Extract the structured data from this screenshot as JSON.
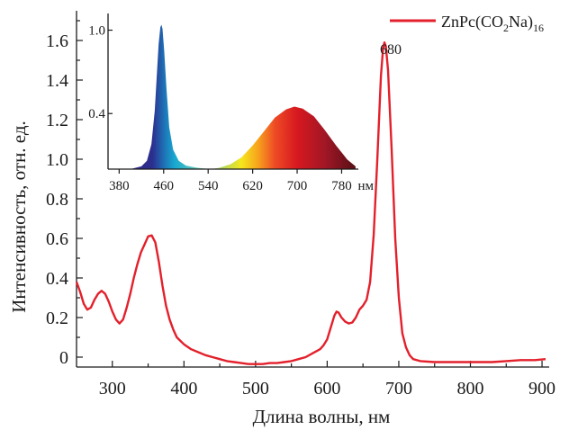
{
  "chart_data": [
    {
      "type": "line",
      "xlabel": "Длина волны, нм",
      "ylabel": "Интенсивность, отн. ед.",
      "xlim": [
        250,
        910
      ],
      "ylim": [
        -0.05,
        1.75
      ],
      "x_ticks": [
        300,
        400,
        500,
        600,
        700,
        800,
        900
      ],
      "y_ticks": [
        0,
        0.2,
        0.4,
        0.6,
        0.8,
        1.0,
        1.2,
        1.4,
        1.6
      ],
      "y_tick_labels": [
        "0",
        "0.2",
        "0.4",
        "0.6",
        "0.8",
        "1.0",
        "1.2",
        "1.4",
        "1.6"
      ],
      "legend": {
        "position": "top-right",
        "label": "ZnPc(CO",
        "label_sub": "2",
        "label_mid": "Na)",
        "label_sub2": "16"
      },
      "annotations": [
        {
          "text": "680",
          "x": 680,
          "y": 1.67
        }
      ],
      "series": [
        {
          "name": "ZnPc(CO2Na)16",
          "color": "#e3202b",
          "points": [
            [
              250,
              0.38
            ],
            [
              255,
              0.33
            ],
            [
              260,
              0.27
            ],
            [
              265,
              0.24
            ],
            [
              270,
              0.25
            ],
            [
              275,
              0.29
            ],
            [
              280,
              0.32
            ],
            [
              285,
              0.335
            ],
            [
              290,
              0.32
            ],
            [
              295,
              0.28
            ],
            [
              300,
              0.23
            ],
            [
              305,
              0.19
            ],
            [
              310,
              0.17
            ],
            [
              315,
              0.19
            ],
            [
              320,
              0.25
            ],
            [
              325,
              0.32
            ],
            [
              330,
              0.4
            ],
            [
              335,
              0.47
            ],
            [
              340,
              0.53
            ],
            [
              345,
              0.57
            ],
            [
              350,
              0.61
            ],
            [
              355,
              0.615
            ],
            [
              360,
              0.58
            ],
            [
              365,
              0.48
            ],
            [
              370,
              0.36
            ],
            [
              375,
              0.26
            ],
            [
              380,
              0.19
            ],
            [
              385,
              0.14
            ],
            [
              390,
              0.1
            ],
            [
              400,
              0.065
            ],
            [
              410,
              0.04
            ],
            [
              420,
              0.025
            ],
            [
              430,
              0.01
            ],
            [
              440,
              0.0
            ],
            [
              450,
              -0.01
            ],
            [
              460,
              -0.02
            ],
            [
              470,
              -0.025
            ],
            [
              480,
              -0.03
            ],
            [
              490,
              -0.035
            ],
            [
              500,
              -0.035
            ],
            [
              510,
              -0.035
            ],
            [
              520,
              -0.03
            ],
            [
              530,
              -0.03
            ],
            [
              540,
              -0.025
            ],
            [
              550,
              -0.02
            ],
            [
              560,
              -0.01
            ],
            [
              570,
              0.0
            ],
            [
              580,
              0.02
            ],
            [
              590,
              0.04
            ],
            [
              595,
              0.06
            ],
            [
              600,
              0.09
            ],
            [
              605,
              0.15
            ],
            [
              610,
              0.21
            ],
            [
              613,
              0.23
            ],
            [
              616,
              0.225
            ],
            [
              620,
              0.2
            ],
            [
              625,
              0.18
            ],
            [
              630,
              0.17
            ],
            [
              635,
              0.175
            ],
            [
              640,
              0.2
            ],
            [
              645,
              0.24
            ],
            [
              650,
              0.26
            ],
            [
              655,
              0.29
            ],
            [
              660,
              0.38
            ],
            [
              665,
              0.62
            ],
            [
              670,
              1.0
            ],
            [
              675,
              1.42
            ],
            [
              678,
              1.56
            ],
            [
              680,
              1.59
            ],
            [
              682,
              1.57
            ],
            [
              685,
              1.45
            ],
            [
              690,
              1.05
            ],
            [
              695,
              0.6
            ],
            [
              700,
              0.3
            ],
            [
              705,
              0.12
            ],
            [
              710,
              0.05
            ],
            [
              715,
              0.01
            ],
            [
              720,
              -0.01
            ],
            [
              730,
              -0.02
            ],
            [
              750,
              -0.025
            ],
            [
              780,
              -0.025
            ],
            [
              800,
              -0.025
            ],
            [
              830,
              -0.025
            ],
            [
              850,
              -0.02
            ],
            [
              870,
              -0.015
            ],
            [
              890,
              -0.015
            ],
            [
              905,
              -0.01
            ]
          ]
        }
      ]
    },
    {
      "type": "area",
      "xlabel": "нм",
      "ylabel": "",
      "xlim": [
        360,
        810
      ],
      "ylim": [
        0,
        1.12
      ],
      "x_ticks": [
        380,
        460,
        540,
        620,
        700,
        780
      ],
      "y_ticks": [
        0.4,
        1.0
      ],
      "y_tick_labels": [
        "0.4",
        "1.0"
      ],
      "fill_colors": [
        {
          "x": 370,
          "color": "#3a2580"
        },
        {
          "x": 440,
          "color": "#2b2e8e"
        },
        {
          "x": 460,
          "color": "#1f6fb5"
        },
        {
          "x": 480,
          "color": "#17a9cf"
        },
        {
          "x": 510,
          "color": "#4fc1c2"
        },
        {
          "x": 560,
          "color": "#a9d66a"
        },
        {
          "x": 600,
          "color": "#f5e61c"
        },
        {
          "x": 630,
          "color": "#f7a21d"
        },
        {
          "x": 660,
          "color": "#ee4a25"
        },
        {
          "x": 700,
          "color": "#d7181f"
        },
        {
          "x": 750,
          "color": "#a11725"
        },
        {
          "x": 800,
          "color": "#5e1018"
        }
      ],
      "series": [
        {
          "name": "",
          "points": [
            [
              370,
              0.0
            ],
            [
              400,
              0.0
            ],
            [
              420,
              0.02
            ],
            [
              430,
              0.06
            ],
            [
              438,
              0.18
            ],
            [
              444,
              0.42
            ],
            [
              448,
              0.7
            ],
            [
              451,
              0.9
            ],
            [
              454,
              1.02
            ],
            [
              456,
              1.04
            ],
            [
              458,
              1.01
            ],
            [
              461,
              0.85
            ],
            [
              465,
              0.58
            ],
            [
              470,
              0.3
            ],
            [
              477,
              0.14
            ],
            [
              487,
              0.06
            ],
            [
              500,
              0.025
            ],
            [
              520,
              0.01
            ],
            [
              545,
              0.0
            ],
            [
              560,
              0.01
            ],
            [
              580,
              0.035
            ],
            [
              600,
              0.085
            ],
            [
              620,
              0.17
            ],
            [
              640,
              0.27
            ],
            [
              660,
              0.37
            ],
            [
              680,
              0.43
            ],
            [
              695,
              0.45
            ],
            [
              710,
              0.435
            ],
            [
              730,
              0.38
            ],
            [
              750,
              0.28
            ],
            [
              770,
              0.17
            ],
            [
              790,
              0.07
            ],
            [
              805,
              0.02
            ]
          ]
        }
      ]
    }
  ]
}
